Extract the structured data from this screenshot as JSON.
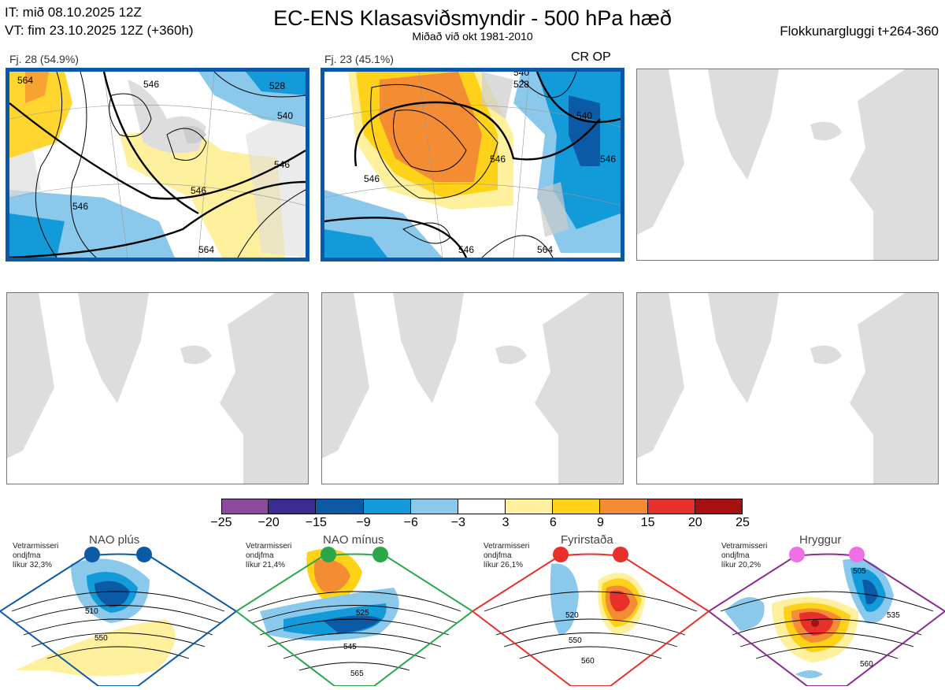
{
  "header": {
    "it_line": "IT: mið 08.10.2025 12Z",
    "vt_line": "VT: fim 23.10.2025 12Z  (+360h)",
    "title": "EC-ENS Klasasviðsmyndir - 500 hPa hæð",
    "subtitle": "Miðað við okt 1981-2010",
    "window": "Flokkunargluggi t+264-360"
  },
  "clusters": [
    {
      "label": "Fj. 28 (54.9%)",
      "contours": [
        "528",
        "540",
        "546",
        "546",
        "546",
        "546",
        "564",
        "564"
      ]
    },
    {
      "label": "Fj. 23 (45.1%)",
      "tag": "CR OP",
      "contours": [
        "528",
        "540",
        "546",
        "546",
        "546",
        "540",
        "546",
        "564"
      ]
    }
  ],
  "colorbar": {
    "colors": [
      "#8d4a9c",
      "#3b2b8f",
      "#0b5aa6",
      "#139ad8",
      "#8ac9ec",
      "#ffffff",
      "#fff09e",
      "#ffd21a",
      "#f48c34",
      "#e8302a",
      "#a51111"
    ],
    "ticks": [
      "−25",
      "−20",
      "−15",
      "−9",
      "−6",
      "−3",
      "3",
      "6",
      "9",
      "15",
      "20",
      "25"
    ]
  },
  "regimes": [
    {
      "name": "NAO plús",
      "note": [
        "Vetrarmisseri",
        "ondjfma",
        "líkur 32,3%"
      ],
      "color": "#0b5aa6",
      "labels": [
        "510",
        "550"
      ]
    },
    {
      "name": "NAO mínus",
      "note": [
        "Vetrarmisseri",
        "ondjfma",
        "líkur 21,4%"
      ],
      "color": "#2aa849",
      "labels": [
        "525",
        "545",
        "565"
      ]
    },
    {
      "name": "Fyrirstaða",
      "note": [
        "Vetrarmisseri",
        "ondjfma",
        "líkur 26,1%"
      ],
      "color": "#e8302a",
      "labels": [
        "520",
        "550",
        "560"
      ]
    },
    {
      "name": "Hryggur",
      "note": [
        "Vetrarmisseri",
        "ondjfma",
        "líkur 20,2%"
      ],
      "color": "#ee6fe6",
      "labels": [
        "505",
        "535",
        "560"
      ]
    }
  ]
}
